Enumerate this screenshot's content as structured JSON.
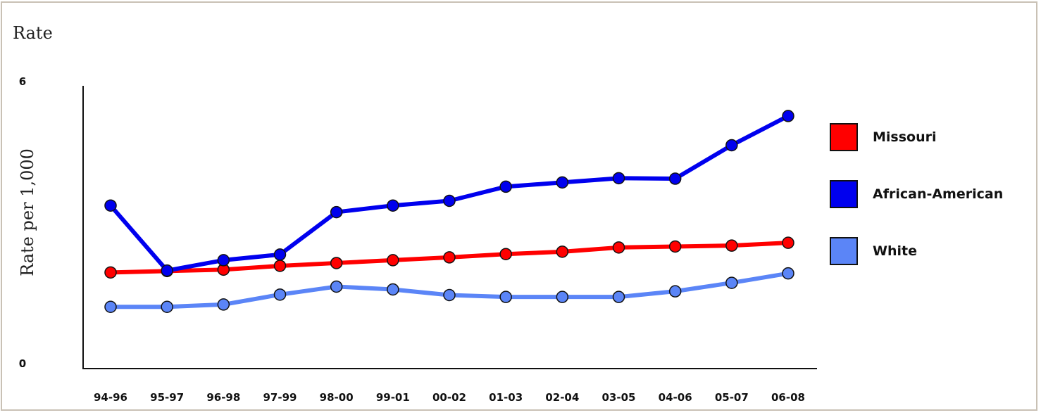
{
  "page": {
    "header_title": "Rate"
  },
  "chart_data": {
    "type": "line",
    "title": "",
    "ylabel": "Rate per 1,000",
    "xlabel": "",
    "ylim": [
      0,
      6
    ],
    "y_ticks": [
      "0",
      "6"
    ],
    "categories": [
      "94-96",
      "95-97",
      "96-98",
      "97-99",
      "98-00",
      "99-01",
      "00-02",
      "01-03",
      "02-04",
      "03-05",
      "04-06",
      "05-07",
      "06-08"
    ],
    "series": [
      {
        "name": "Missouri",
        "color": "#ff0000",
        "values": [
          1.98,
          2.01,
          2.04,
          2.12,
          2.18,
          2.24,
          2.3,
          2.37,
          2.42,
          2.51,
          2.53,
          2.55,
          2.61
        ]
      },
      {
        "name": "African-American",
        "color": "#0000ee",
        "values": [
          3.4,
          2.02,
          2.24,
          2.36,
          3.26,
          3.4,
          3.5,
          3.8,
          3.89,
          3.98,
          3.97,
          4.68,
          5.3
        ]
      },
      {
        "name": "White",
        "color": "#5b85f7",
        "values": [
          1.25,
          1.25,
          1.3,
          1.51,
          1.68,
          1.62,
          1.5,
          1.46,
          1.46,
          1.46,
          1.58,
          1.76,
          1.96
        ]
      }
    ],
    "legend_position": "right",
    "grid": false
  }
}
